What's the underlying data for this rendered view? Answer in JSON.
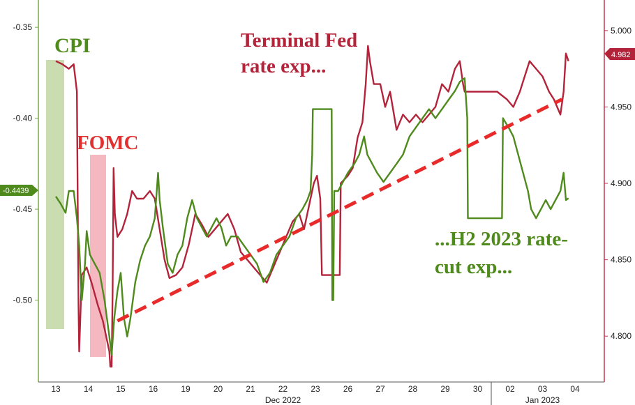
{
  "chart_data": {
    "type": "line",
    "title": "",
    "xlabel": "",
    "ylabel": "",
    "x_tick_labels": [
      "13",
      "14",
      "15",
      "16",
      "19",
      "20",
      "21",
      "22",
      "23",
      "26",
      "27",
      "28",
      "29",
      "30",
      "02",
      "03",
      "04"
    ],
    "x_group_labels": [
      "Dec 2022",
      "Jan 2023"
    ],
    "y_left": {
      "ticks": [
        "-0.35",
        "-0.40",
        "-0.45",
        "-0.50"
      ],
      "range": [
        -0.545,
        -0.335
      ]
    },
    "y_right": {
      "ticks": [
        "5.000",
        "4.950",
        "4.900",
        "4.850",
        "4.800"
      ],
      "range": [
        4.77,
        5.02
      ]
    },
    "grid": false,
    "legend": "none",
    "current_labels": {
      "left": "-0.4439",
      "right": "4.982"
    },
    "annotations": {
      "cpi": "CPI",
      "fomc": "FOMC",
      "terminal_line1": "Terminal Fed",
      "terminal_line2": "rate exp...",
      "cut_line1": "...H2 2023 rate-",
      "cut_line2": "cut exp..."
    },
    "colors": {
      "green": "#4f8a1c",
      "red": "#b3243b",
      "trend": "#e82a2a",
      "cpi_band": "#c9ddb0",
      "fomc_band": "#f6b8c0"
    },
    "series": [
      {
        "axis": "right",
        "color": "#b3243b",
        "points": [
          [
            0,
            4.98
          ],
          [
            0.2,
            4.978
          ],
          [
            0.4,
            4.975
          ],
          [
            0.55,
            4.978
          ],
          [
            0.65,
            4.96
          ],
          [
            0.7,
            4.82
          ],
          [
            0.72,
            4.79
          ],
          [
            0.8,
            4.84
          ],
          [
            0.95,
            4.845
          ],
          [
            1.1,
            4.835
          ],
          [
            1.3,
            4.82
          ],
          [
            1.45,
            4.81
          ],
          [
            1.55,
            4.8
          ],
          [
            1.65,
            4.79
          ],
          [
            1.68,
            4.78
          ],
          [
            1.72,
            4.78
          ],
          [
            1.75,
            4.83
          ],
          [
            1.78,
            4.91
          ],
          [
            1.82,
            4.88
          ],
          [
            1.9,
            4.865
          ],
          [
            2.05,
            4.87
          ],
          [
            2.2,
            4.88
          ],
          [
            2.35,
            4.895
          ],
          [
            2.5,
            4.89
          ],
          [
            2.7,
            4.89
          ],
          [
            2.9,
            4.895
          ],
          [
            3.05,
            4.89
          ],
          [
            3.2,
            4.87
          ],
          [
            3.35,
            4.85
          ],
          [
            3.5,
            4.838
          ],
          [
            3.7,
            4.84
          ],
          [
            3.9,
            4.845
          ],
          [
            4.1,
            4.86
          ],
          [
            4.3,
            4.88
          ],
          [
            4.5,
            4.873
          ],
          [
            4.7,
            4.865
          ],
          [
            4.9,
            4.87
          ],
          [
            5.1,
            4.875
          ],
          [
            5.3,
            4.88
          ],
          [
            5.5,
            4.87
          ],
          [
            5.7,
            4.855
          ],
          [
            5.9,
            4.85
          ],
          [
            6.1,
            4.845
          ],
          [
            6.3,
            4.84
          ],
          [
            6.5,
            4.835
          ],
          [
            6.7,
            4.845
          ],
          [
            6.9,
            4.855
          ],
          [
            7.1,
            4.865
          ],
          [
            7.3,
            4.875
          ],
          [
            7.5,
            4.88
          ],
          [
            7.65,
            4.87
          ],
          [
            7.8,
            4.885
          ],
          [
            7.95,
            4.9
          ],
          [
            8.05,
            4.905
          ],
          [
            8.15,
            4.89
          ],
          [
            8.2,
            4.84
          ],
          [
            8.5,
            4.84
          ],
          [
            8.75,
            4.84
          ],
          [
            8.78,
            4.9
          ],
          [
            9.0,
            4.905
          ],
          [
            9.15,
            4.91
          ],
          [
            9.3,
            4.93
          ],
          [
            9.45,
            4.94
          ],
          [
            9.55,
            4.965
          ],
          [
            9.62,
            4.99
          ],
          [
            9.68,
            4.98
          ],
          [
            9.8,
            4.965
          ],
          [
            10.0,
            4.965
          ],
          [
            10.15,
            4.95
          ],
          [
            10.3,
            4.96
          ],
          [
            10.5,
            4.935
          ],
          [
            10.7,
            4.945
          ],
          [
            10.9,
            4.94
          ],
          [
            11.1,
            4.945
          ],
          [
            11.3,
            4.94
          ],
          [
            11.5,
            4.945
          ],
          [
            11.7,
            4.95
          ],
          [
            11.9,
            4.965
          ],
          [
            12.1,
            4.96
          ],
          [
            12.3,
            4.975
          ],
          [
            12.45,
            4.98
          ],
          [
            12.55,
            4.965
          ],
          [
            12.6,
            4.96
          ],
          [
            12.75,
            4.96
          ],
          [
            13.0,
            4.96
          ],
          [
            13.3,
            4.96
          ],
          [
            13.6,
            4.96
          ],
          [
            13.9,
            4.955
          ],
          [
            14.1,
            4.95
          ],
          [
            14.3,
            4.96
          ],
          [
            14.45,
            4.97
          ],
          [
            14.6,
            4.98
          ],
          [
            14.8,
            4.975
          ],
          [
            15.0,
            4.97
          ],
          [
            15.2,
            4.96
          ],
          [
            15.35,
            4.955
          ],
          [
            15.45,
            4.95
          ],
          [
            15.55,
            4.945
          ],
          [
            15.65,
            4.96
          ],
          [
            15.72,
            4.985
          ],
          [
            15.8,
            4.98
          ]
        ]
      },
      {
        "axis": "left",
        "color": "#4f8a1c",
        "points": [
          [
            0,
            -0.443
          ],
          [
            0.15,
            -0.447
          ],
          [
            0.3,
            -0.452
          ],
          [
            0.4,
            -0.44
          ],
          [
            0.55,
            -0.44
          ],
          [
            0.65,
            -0.455
          ],
          [
            0.72,
            -0.47
          ],
          [
            0.8,
            -0.5
          ],
          [
            0.85,
            -0.49
          ],
          [
            0.9,
            -0.48
          ],
          [
            0.95,
            -0.462
          ],
          [
            1.05,
            -0.475
          ],
          [
            1.2,
            -0.48
          ],
          [
            1.35,
            -0.485
          ],
          [
            1.5,
            -0.5
          ],
          [
            1.65,
            -0.52
          ],
          [
            1.72,
            -0.53
          ],
          [
            1.8,
            -0.51
          ],
          [
            1.9,
            -0.495
          ],
          [
            2.0,
            -0.485
          ],
          [
            2.1,
            -0.51
          ],
          [
            2.2,
            -0.52
          ],
          [
            2.3,
            -0.51
          ],
          [
            2.45,
            -0.49
          ],
          [
            2.6,
            -0.478
          ],
          [
            2.75,
            -0.47
          ],
          [
            2.9,
            -0.465
          ],
          [
            3.05,
            -0.455
          ],
          [
            3.15,
            -0.43
          ],
          [
            3.2,
            -0.445
          ],
          [
            3.3,
            -0.46
          ],
          [
            3.45,
            -0.48
          ],
          [
            3.6,
            -0.485
          ],
          [
            3.75,
            -0.475
          ],
          [
            3.9,
            -0.47
          ],
          [
            4.05,
            -0.455
          ],
          [
            4.2,
            -0.445
          ],
          [
            4.35,
            -0.455
          ],
          [
            4.5,
            -0.46
          ],
          [
            4.65,
            -0.465
          ],
          [
            4.8,
            -0.46
          ],
          [
            4.95,
            -0.455
          ],
          [
            5.1,
            -0.46
          ],
          [
            5.25,
            -0.47
          ],
          [
            5.4,
            -0.465
          ],
          [
            5.6,
            -0.465
          ],
          [
            5.8,
            -0.47
          ],
          [
            6.0,
            -0.475
          ],
          [
            6.2,
            -0.48
          ],
          [
            6.4,
            -0.49
          ],
          [
            6.6,
            -0.485
          ],
          [
            6.8,
            -0.475
          ],
          [
            7.0,
            -0.47
          ],
          [
            7.2,
            -0.465
          ],
          [
            7.4,
            -0.455
          ],
          [
            7.6,
            -0.45
          ],
          [
            7.75,
            -0.445
          ],
          [
            7.85,
            -0.44
          ],
          [
            7.9,
            -0.42
          ],
          [
            7.92,
            -0.395
          ],
          [
            8.5,
            -0.395
          ],
          [
            8.52,
            -0.5
          ],
          [
            8.55,
            -0.5
          ],
          [
            8.58,
            -0.44
          ],
          [
            8.7,
            -0.44
          ],
          [
            8.85,
            -0.435
          ],
          [
            9.0,
            -0.43
          ],
          [
            9.2,
            -0.425
          ],
          [
            9.35,
            -0.42
          ],
          [
            9.5,
            -0.41
          ],
          [
            9.6,
            -0.42
          ],
          [
            9.75,
            -0.425
          ],
          [
            9.9,
            -0.43
          ],
          [
            10.1,
            -0.435
          ],
          [
            10.3,
            -0.43
          ],
          [
            10.5,
            -0.425
          ],
          [
            10.7,
            -0.42
          ],
          [
            10.9,
            -0.41
          ],
          [
            11.1,
            -0.405
          ],
          [
            11.3,
            -0.4
          ],
          [
            11.5,
            -0.395
          ],
          [
            11.7,
            -0.4
          ],
          [
            11.9,
            -0.395
          ],
          [
            12.1,
            -0.39
          ],
          [
            12.3,
            -0.385
          ],
          [
            12.45,
            -0.38
          ],
          [
            12.6,
            -0.378
          ],
          [
            12.68,
            -0.4
          ],
          [
            12.7,
            -0.455
          ],
          [
            13.0,
            -0.455
          ],
          [
            13.4,
            -0.455
          ],
          [
            13.75,
            -0.455
          ],
          [
            13.78,
            -0.4
          ],
          [
            13.95,
            -0.405
          ],
          [
            14.1,
            -0.41
          ],
          [
            14.25,
            -0.42
          ],
          [
            14.4,
            -0.43
          ],
          [
            14.55,
            -0.44
          ],
          [
            14.65,
            -0.45
          ],
          [
            14.8,
            -0.455
          ],
          [
            14.95,
            -0.45
          ],
          [
            15.1,
            -0.445
          ],
          [
            15.25,
            -0.45
          ],
          [
            15.4,
            -0.445
          ],
          [
            15.55,
            -0.44
          ],
          [
            15.65,
            -0.43
          ],
          [
            15.72,
            -0.445
          ],
          [
            15.8,
            -0.444
          ]
        ]
      },
      {
        "axis": "right",
        "color": "#e82a2a",
        "style": "dashed",
        "points": [
          [
            1.9,
            4.81
          ],
          [
            15.6,
            4.955
          ]
        ]
      }
    ]
  }
}
